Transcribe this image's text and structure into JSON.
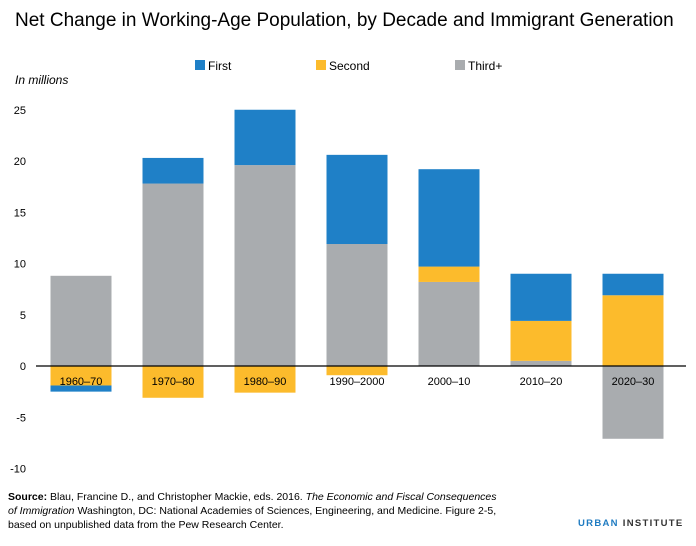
{
  "chart_data": {
    "type": "bar",
    "stacked": true,
    "title": "Net Change in Working-Age Population, by Decade and Immigrant Generation",
    "ylabel": "In millions",
    "ylim": [
      -10,
      25
    ],
    "yticks": [
      -10,
      -5,
      0,
      5,
      10,
      15,
      20,
      25
    ],
    "grid": false,
    "legend_position": "top",
    "categories": [
      "1960–70",
      "1970–80",
      "1980–90",
      "1990–2000",
      "2000–10",
      "2010–20",
      "2020–30"
    ],
    "series": [
      {
        "name": "First",
        "color": "#1f80c7",
        "values": [
          -0.6,
          2.5,
          5.4,
          8.7,
          9.5,
          4.6,
          2.1
        ]
      },
      {
        "name": "Second",
        "color": "#fcbb2c",
        "values": [
          -1.9,
          -3.1,
          -2.6,
          -0.9,
          1.5,
          3.9,
          6.9
        ]
      },
      {
        "name": "Third+",
        "color": "#a9acaf",
        "values": [
          8.8,
          17.8,
          19.6,
          11.9,
          8.2,
          0.5,
          -7.1
        ]
      }
    ]
  },
  "source": {
    "label": "Source:",
    "text1": " Blau, Francine D., and Christopher Mackie, eds. 2016. ",
    "italic1": "The Economic and Fiscal Consequences of Immigration",
    "text2": " Washington, DC: National Academies of Sciences, Engineering, and Medicine. Figure 2-5, based on unpublished data from the Pew Research Center."
  },
  "logo": {
    "part1": "URBAN",
    "part2": "INSTITUTE"
  }
}
